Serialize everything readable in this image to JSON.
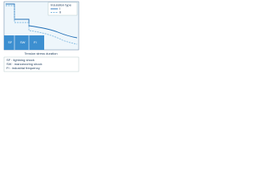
{
  "legend": {
    "title": "Insulation type",
    "entries": [
      "I",
      "II"
    ]
  },
  "regions": [
    "SF",
    "SW",
    "FI"
  ],
  "x_label": "Tension stress duration",
  "notes": [
    "SF : lightning shock",
    "SW : manoeuvring shock",
    "FI : industrial frequency"
  ]
}
